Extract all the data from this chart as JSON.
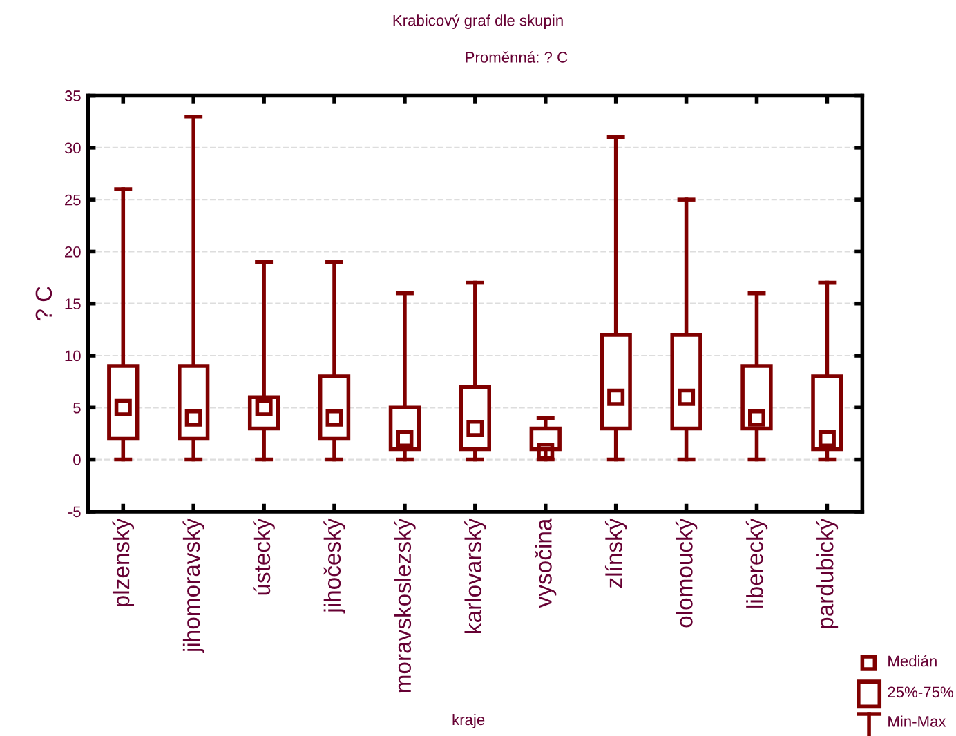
{
  "chart_data": {
    "type": "box",
    "title": "Krabicový graf dle skupin",
    "subtitle": "Proměnná: ? C",
    "xlabel": "kraje",
    "ylabel": "? C",
    "categories": [
      "plzenský",
      "jihomoravský",
      "ústecký",
      "jihočeský",
      "moravskoslezský",
      "karlovarský",
      "vysočina",
      "zlínský",
      "olomoucký",
      "liberecký",
      "pardubický"
    ],
    "series": [
      {
        "color": "#800000",
        "boxes": [
          {
            "low": 0,
            "q1": 2,
            "median": 5,
            "q3": 9,
            "high": 26
          },
          {
            "low": 0,
            "q1": 2,
            "median": 4,
            "q3": 9,
            "high": 33
          },
          {
            "low": 0,
            "q1": 3,
            "median": 5,
            "q3": 6,
            "high": 19
          },
          {
            "low": 0,
            "q1": 2,
            "median": 4,
            "q3": 8,
            "high": 19
          },
          {
            "low": 0,
            "q1": 1,
            "median": 2,
            "q3": 5,
            "high": 16
          },
          {
            "low": 0,
            "q1": 1,
            "median": 3,
            "q3": 7,
            "high": 17
          },
          {
            "low": 0,
            "q1": 1,
            "median": 0.8,
            "q3": 3,
            "high": 4
          },
          {
            "low": 0,
            "q1": 3,
            "median": 6,
            "q3": 12,
            "high": 31
          },
          {
            "low": 0,
            "q1": 3,
            "median": 6,
            "q3": 12,
            "high": 25
          },
          {
            "low": 0,
            "q1": 3,
            "median": 4,
            "q3": 9,
            "high": 16
          },
          {
            "low": 0,
            "q1": 1,
            "median": 2,
            "q3": 8,
            "high": 17
          }
        ]
      }
    ],
    "annotations": [
      "Medián",
      "25%-75%",
      "Min-Max"
    ],
    "ylim": [
      -5,
      35
    ],
    "yticks": [
      -5,
      0,
      5,
      10,
      15,
      20,
      25,
      30,
      35
    ],
    "grid": "y"
  }
}
